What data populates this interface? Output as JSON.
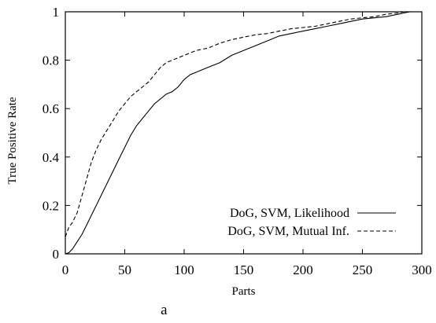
{
  "chart_data": {
    "type": "line",
    "panel_label": "a",
    "xlabel": "Parts",
    "ylabel": "True Positive Rate",
    "xlim": [
      0,
      300
    ],
    "ylim": [
      0,
      1
    ],
    "xticks": [
      0,
      50,
      100,
      150,
      200,
      250,
      300
    ],
    "yticks": [
      0,
      0.2,
      0.4,
      0.6,
      0.8,
      1
    ],
    "ytick_labels": [
      "0",
      "0.2",
      "0.4",
      "0.6",
      "0.8",
      "1"
    ],
    "grid": false,
    "legend_position": "bottom-right",
    "series": [
      {
        "name": "DoG, SVM, Likelihood",
        "line_style": "solid",
        "color": "#000000",
        "x": [
          0,
          3,
          6,
          10,
          14,
          18,
          22,
          26,
          30,
          35,
          40,
          45,
          50,
          55,
          60,
          65,
          70,
          75,
          80,
          85,
          90,
          95,
          100,
          105,
          110,
          115,
          120,
          125,
          130,
          140,
          150,
          160,
          170,
          180,
          190,
          200,
          210,
          220,
          230,
          240,
          250,
          260,
          270,
          280,
          285,
          290
        ],
        "y": [
          0,
          0.005,
          0.02,
          0.05,
          0.08,
          0.12,
          0.16,
          0.2,
          0.24,
          0.29,
          0.34,
          0.39,
          0.44,
          0.49,
          0.53,
          0.56,
          0.59,
          0.62,
          0.64,
          0.66,
          0.67,
          0.69,
          0.72,
          0.74,
          0.75,
          0.76,
          0.77,
          0.78,
          0.79,
          0.82,
          0.84,
          0.86,
          0.88,
          0.9,
          0.91,
          0.92,
          0.93,
          0.94,
          0.95,
          0.96,
          0.97,
          0.975,
          0.98,
          0.99,
          0.995,
          1.0
        ]
      },
      {
        "name": "DoG, SVM,  Mutual Inf.",
        "line_style": "dashed",
        "color": "#000000",
        "x": [
          0,
          3,
          6,
          10,
          14,
          18,
          22,
          26,
          30,
          35,
          40,
          45,
          50,
          55,
          60,
          65,
          70,
          75,
          80,
          85,
          90,
          95,
          100,
          105,
          110,
          115,
          120,
          125,
          130,
          140,
          150,
          160,
          170,
          180,
          190,
          200,
          210,
          220,
          230,
          240,
          250,
          260,
          270,
          280,
          285,
          290
        ],
        "y": [
          0.07,
          0.11,
          0.13,
          0.17,
          0.24,
          0.31,
          0.38,
          0.43,
          0.47,
          0.51,
          0.55,
          0.59,
          0.62,
          0.65,
          0.67,
          0.69,
          0.71,
          0.74,
          0.77,
          0.79,
          0.8,
          0.81,
          0.82,
          0.83,
          0.84,
          0.845,
          0.85,
          0.86,
          0.87,
          0.885,
          0.895,
          0.905,
          0.91,
          0.92,
          0.93,
          0.935,
          0.94,
          0.95,
          0.96,
          0.97,
          0.975,
          0.98,
          0.99,
          0.995,
          1.0,
          1.0
        ]
      }
    ]
  }
}
